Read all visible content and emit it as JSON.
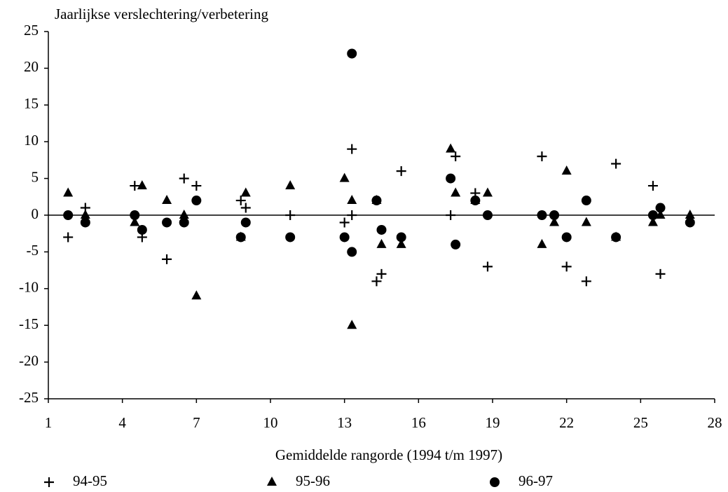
{
  "chart_data": {
    "type": "scatter",
    "y_label": "Jaarlijkse verslechtering/verbetering",
    "x_label": "Gemiddelde rangorde (1994 t/m 1997)",
    "xlim": [
      1,
      28
    ],
    "xticks": [
      1,
      4,
      7,
      10,
      13,
      16,
      19,
      22,
      25,
      28
    ],
    "ylim": [
      -25,
      25
    ],
    "yticks": [
      -25,
      -20,
      -15,
      -10,
      -5,
      0,
      5,
      10,
      15,
      20,
      25
    ],
    "zero_line": true,
    "series": [
      {
        "name": "94-95",
        "color": "#000000",
        "marker": "plus",
        "x": [
          1.8,
          2.5,
          4.5,
          4.8,
          5.8,
          6.5,
          7.0,
          8.8,
          9.0,
          10.8,
          13.0,
          13.3,
          13.3,
          14.3,
          14.5,
          15.3,
          17.3,
          17.5,
          18.3,
          18.8,
          21.0,
          22.0,
          22.8,
          24.0,
          25.5,
          25.8
        ],
        "values": [
          -3,
          1,
          4,
          -3,
          -6,
          5,
          4,
          2,
          1,
          0,
          -1,
          9,
          0,
          -9,
          -8,
          6,
          0,
          8,
          3,
          -7,
          8,
          -7,
          -9,
          7,
          4,
          -8
        ]
      },
      {
        "name": "95-96",
        "color": "#000000",
        "marker": "triangle",
        "x": [
          1.8,
          2.5,
          4.5,
          4.8,
          5.8,
          6.5,
          7.0,
          8.8,
          9.0,
          10.8,
          13.0,
          13.3,
          13.3,
          14.3,
          14.5,
          15.3,
          17.3,
          17.5,
          18.3,
          18.8,
          21.0,
          21.5,
          22.0,
          22.8,
          24.0,
          25.5,
          25.8,
          27.0
        ],
        "values": [
          3,
          0,
          -1,
          4,
          2,
          0,
          -11,
          -3,
          3,
          4,
          5,
          2,
          -15,
          2,
          -4,
          -4,
          9,
          3,
          2,
          3,
          -4,
          -1,
          6,
          -1,
          -3,
          -1,
          0,
          0
        ]
      },
      {
        "name": "96-97",
        "color": "#000000",
        "marker": "circle",
        "x": [
          1.8,
          2.5,
          4.5,
          4.8,
          5.8,
          6.5,
          7.0,
          8.8,
          9.0,
          10.8,
          13.0,
          13.3,
          13.3,
          14.3,
          14.5,
          15.3,
          17.3,
          17.5,
          18.3,
          18.8,
          21.0,
          21.5,
          22.0,
          22.8,
          24.0,
          25.5,
          25.8,
          27.0
        ],
        "values": [
          0,
          -1,
          0,
          -2,
          -1,
          -1,
          2,
          -3,
          -1,
          -3,
          -3,
          22,
          -5,
          2,
          -2,
          -3,
          5,
          -4,
          2,
          0,
          0,
          0,
          -3,
          2,
          -3,
          0,
          1,
          -1
        ]
      }
    ]
  }
}
